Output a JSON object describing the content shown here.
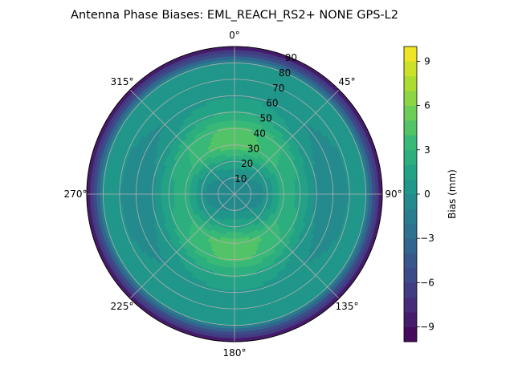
{
  "chart_data": {
    "type": "heatmap",
    "subtype": "polar-contour",
    "title": "Antenna Phase Biases: EML_REACH_RS2+  NONE GPS-L2",
    "azimuth_ticks": [
      "0°",
      "45°",
      "90°",
      "135°",
      "180°",
      "225°",
      "270°",
      "315°"
    ],
    "azimuth_tick_degrees": [
      0,
      45,
      90,
      135,
      180,
      225,
      270,
      315
    ],
    "radial_ticks": [
      10,
      20,
      30,
      40,
      50,
      60,
      70,
      80,
      90
    ],
    "radial_range": [
      0,
      90
    ],
    "angular_direction": "clockwise",
    "zero_location": "N",
    "grid": true,
    "colorbar": {
      "label": "Bias (mm)",
      "range": [
        -10,
        10
      ],
      "ticks": [
        -9,
        -6,
        -3,
        0,
        3,
        6,
        9
      ],
      "tick_labels": [
        "−9",
        "−6",
        "−3",
        "0",
        "3",
        "6",
        "9"
      ],
      "colormap": "viridis",
      "levels": 20
    },
    "bias_profile_by_zenith": {
      "zenith_deg": [
        0,
        10,
        20,
        30,
        40,
        50,
        60,
        70,
        80,
        85,
        90
      ],
      "bias_mm": [
        -1,
        -0.5,
        1,
        3.5,
        3,
        1,
        0,
        0.5,
        0,
        -5,
        -9
      ]
    },
    "notes": "Concentric rings: low bias near centre, positive ring (~3 to 4 mm) at 25-40 deg zenith, negative (~-3 mm) near 55-60 deg, rising near 75 deg, strongly negative at the horizon edge."
  }
}
